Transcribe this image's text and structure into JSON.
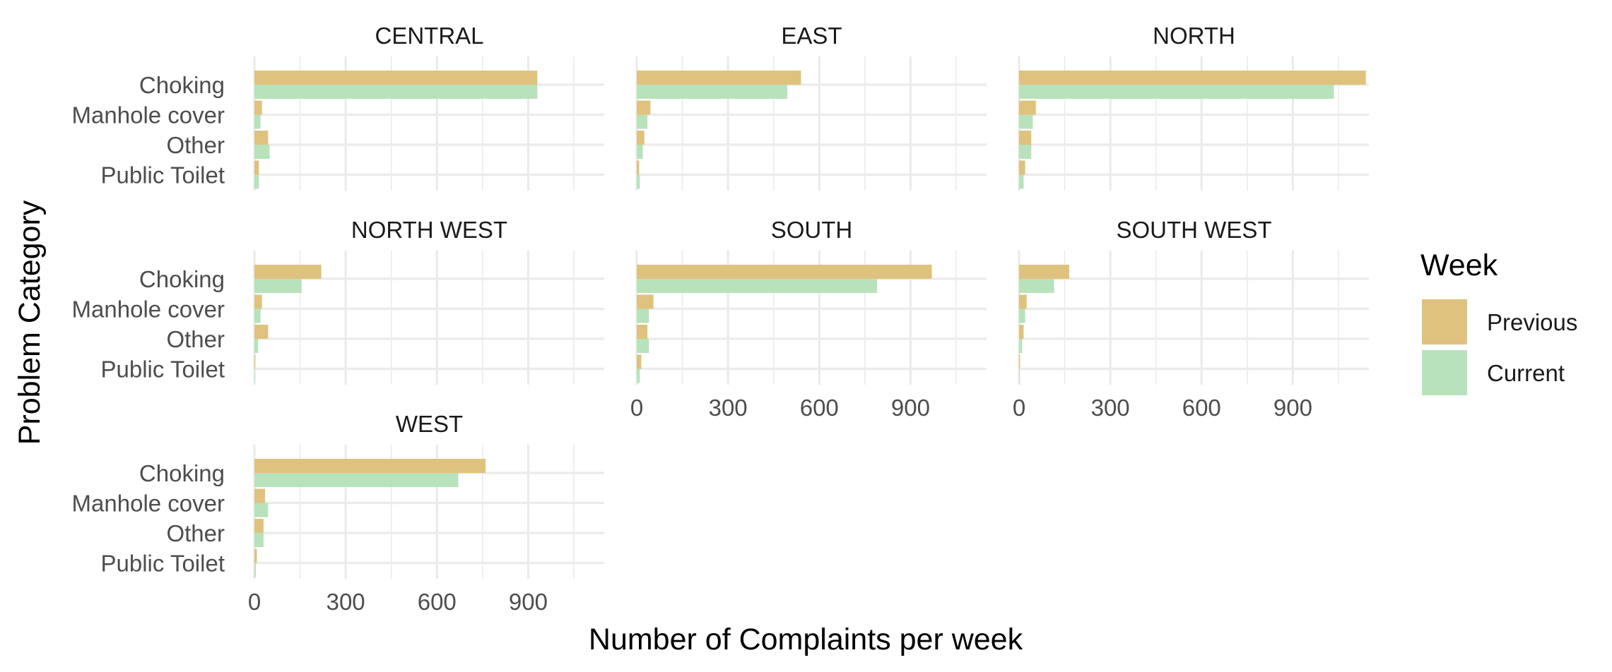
{
  "chart_data": {
    "type": "bar",
    "orientation": "horizontal",
    "facet_layout": "3 columns, shared x-axis",
    "xlabel": "Number of Complaints per week",
    "ylabel": "Problem Category",
    "xlim": [
      0,
      1150
    ],
    "x_ticks": [
      "0",
      "300",
      "600",
      "900"
    ],
    "categories": [
      "Choking",
      "Manhole cover",
      "Other",
      "Public Toilet"
    ],
    "series_names": [
      "Previous",
      "Current"
    ],
    "legend": {
      "title": "Week",
      "placement": "right",
      "entries": [
        {
          "label": "Previous",
          "color": "#dfc27d"
        },
        {
          "label": "Current",
          "color": "#b8e2bb"
        }
      ]
    },
    "grid": true,
    "panels": [
      {
        "title": "CENTRAL",
        "previous": [
          930,
          25,
          45,
          15
        ],
        "current": [
          930,
          20,
          50,
          15
        ]
      },
      {
        "title": "EAST",
        "previous": [
          540,
          45,
          25,
          8
        ],
        "current": [
          495,
          35,
          20,
          10
        ]
      },
      {
        "title": "NORTH",
        "previous": [
          1140,
          55,
          40,
          20
        ],
        "current": [
          1035,
          45,
          40,
          15
        ]
      },
      {
        "title": "NORTH WEST",
        "previous": [
          220,
          25,
          45,
          3
        ],
        "current": [
          155,
          20,
          12,
          2
        ]
      },
      {
        "title": "SOUTH",
        "previous": [
          970,
          55,
          35,
          15
        ],
        "current": [
          790,
          40,
          40,
          10
        ]
      },
      {
        "title": "SOUTH WEST",
        "previous": [
          165,
          25,
          15,
          3
        ],
        "current": [
          115,
          20,
          10,
          2
        ]
      },
      {
        "title": "WEST",
        "previous": [
          760,
          35,
          30,
          8
        ],
        "current": [
          670,
          45,
          30,
          5
        ]
      }
    ]
  }
}
